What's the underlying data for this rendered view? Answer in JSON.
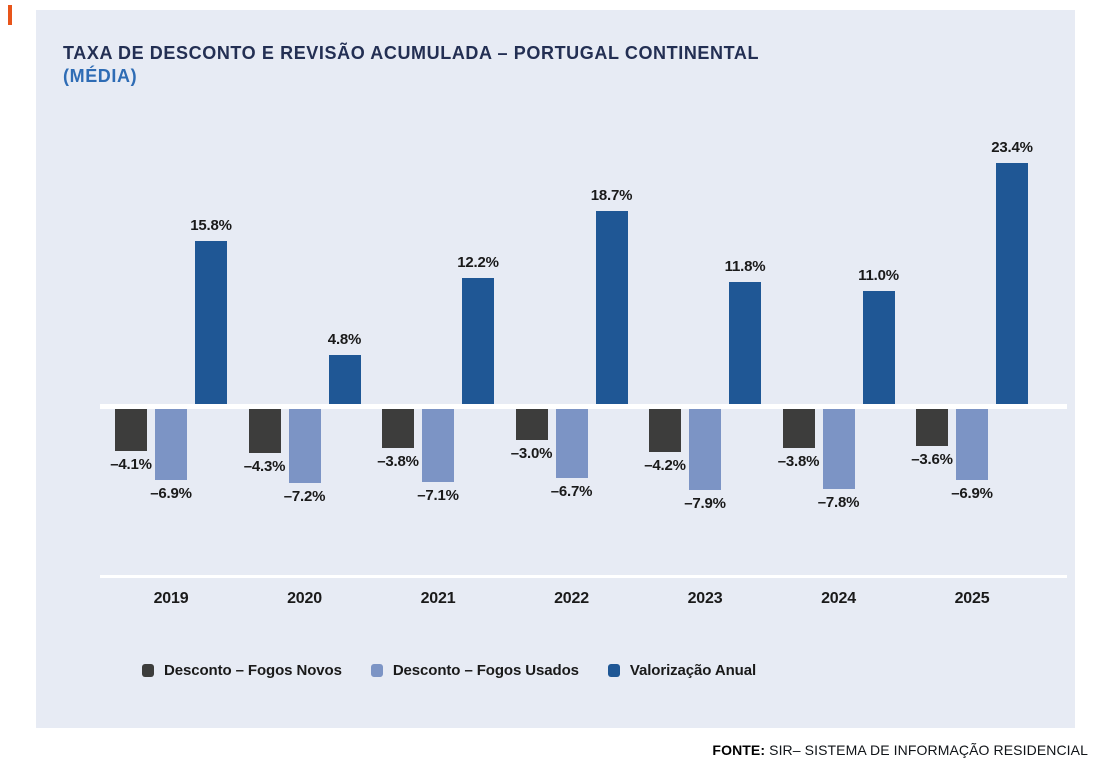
{
  "accent_color": "#E8551A",
  "panel_bg": "#E7EBF4",
  "title": {
    "line1": "TAXA DE DESCONTO E REVISÃO ACUMULADA – PORTUGAL CONTINENTAL",
    "line2": "(MÉDIA)",
    "line1_color": "#232F53",
    "line2_color": "#2E6CB5"
  },
  "chart_data": {
    "type": "bar",
    "categories": [
      "2019",
      "2020",
      "2021",
      "2022",
      "2023",
      "2024",
      "2025"
    ],
    "series": [
      {
        "name": "Desconto – Fogos Novos",
        "color": "#3D3D3C",
        "values": [
          -4.1,
          -4.3,
          -3.8,
          -3.0,
          -4.2,
          -3.8,
          -3.6
        ]
      },
      {
        "name": "Desconto – Fogos Usados",
        "color": "#7C94C5",
        "values": [
          -6.9,
          -7.2,
          -7.1,
          -6.7,
          -7.9,
          -7.8,
          -6.9
        ]
      },
      {
        "name": "Valorização Anual",
        "color": "#1F5795",
        "values": [
          15.8,
          4.8,
          12.2,
          18.7,
          11.8,
          11.0,
          23.4
        ]
      }
    ],
    "value_label_format": "one-decimal-percent",
    "ylim": [
      -9,
      25
    ],
    "grid": false,
    "legend_position": "bottom",
    "baseline_color": "#FFFFFF"
  },
  "footer": {
    "prefix": "FONTE:",
    "text": " SIR– SISTEMA DE INFORMAÇÃO RESIDENCIAL"
  }
}
